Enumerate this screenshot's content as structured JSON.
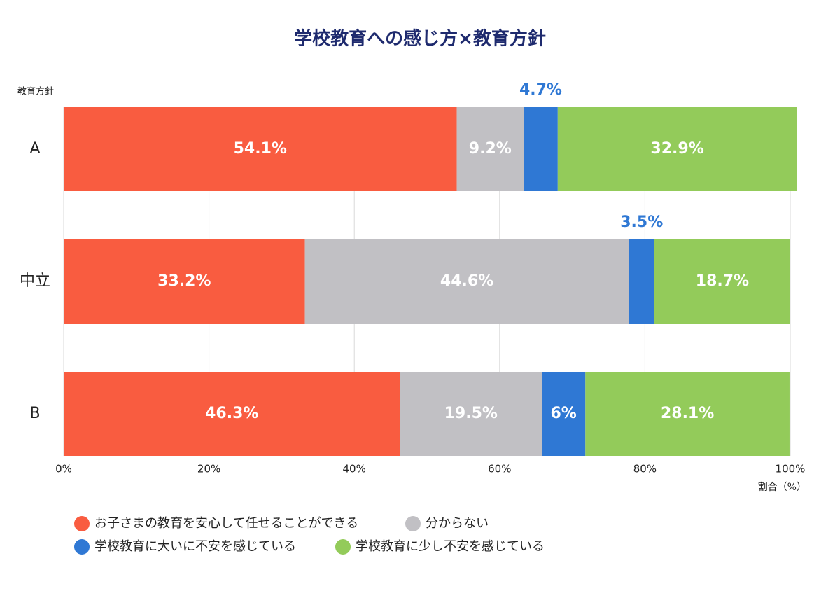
{
  "chart_data": {
    "type": "stacked_barh",
    "title": "学校教育への感じ方×教育方針",
    "y_label": "教育方針",
    "x_label": "割合（%）",
    "categories": [
      "A",
      "中立",
      "B"
    ],
    "series": [
      {
        "name": "お子さまの教育を安心して任せることができる",
        "color": "#f95c40",
        "values": [
          54.1,
          33.2,
          46.3
        ],
        "value_labels": [
          "54.1%",
          "33.2%",
          "46.3%"
        ]
      },
      {
        "name": "分からない",
        "color": "#c1c0c4",
        "values": [
          9.2,
          44.6,
          19.5
        ],
        "value_labels": [
          "9.2%",
          "44.6%",
          "19.5%"
        ]
      },
      {
        "name": "学校教育に大いに不安を感じている",
        "color": "#2f78d4",
        "values": [
          4.7,
          3.5,
          6
        ],
        "value_labels": [
          "4.7%",
          "3.5%",
          "6%"
        ]
      },
      {
        "name": "学校教育に少し不安を感じている",
        "color": "#93cb5a",
        "values": [
          32.9,
          18.7,
          28.1
        ],
        "value_labels": [
          "32.9%",
          "18.7%",
          "28.1%"
        ]
      }
    ],
    "xlim": [
      0,
      100
    ],
    "xticks": [
      {
        "value": 0,
        "label": "0%"
      },
      {
        "value": 20,
        "label": "20%"
      },
      {
        "value": 40,
        "label": "40%"
      },
      {
        "value": 60,
        "label": "60%"
      },
      {
        "value": 80,
        "label": "80%"
      },
      {
        "value": 100,
        "label": "100%"
      }
    ],
    "grid": true
  }
}
